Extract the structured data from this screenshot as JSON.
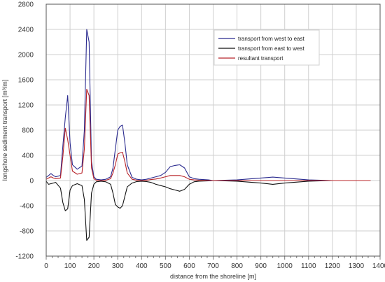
{
  "chart_data": {
    "type": "line",
    "xlabel": "distance from the shoreline [m]",
    "ylabel": "longshore sediment transport [m³/m]",
    "xlim": [
      0,
      1400
    ],
    "ylim": [
      -1200,
      2800
    ],
    "xticks": [
      0,
      100,
      200,
      300,
      400,
      500,
      600,
      700,
      800,
      900,
      1000,
      1100,
      1200,
      1300,
      1400
    ],
    "yticks": [
      -1200,
      -800,
      -400,
      0,
      400,
      800,
      1200,
      1600,
      2000,
      2400,
      2800
    ],
    "grid": true,
    "legend_position": "top-right",
    "series": [
      {
        "name": "transport from west to east",
        "color": "#2b2b8f",
        "x": [
          0,
          10,
          20,
          30,
          40,
          60,
          70,
          80,
          90,
          100,
          110,
          130,
          150,
          160,
          170,
          180,
          190,
          200,
          210,
          230,
          250,
          270,
          280,
          290,
          300,
          310,
          320,
          330,
          340,
          360,
          380,
          400,
          420,
          440,
          460,
          480,
          500,
          520,
          540,
          560,
          580,
          600,
          620,
          640,
          680,
          700,
          800,
          900,
          950,
          1000,
          1100,
          1200,
          1300,
          1360
        ],
        "y": [
          50,
          80,
          110,
          80,
          60,
          80,
          550,
          1000,
          1350,
          600,
          250,
          180,
          230,
          800,
          2400,
          2200,
          300,
          60,
          20,
          10,
          20,
          60,
          200,
          500,
          800,
          860,
          880,
          600,
          250,
          50,
          20,
          10,
          20,
          40,
          60,
          80,
          130,
          220,
          240,
          250,
          200,
          60,
          30,
          20,
          10,
          0,
          10,
          40,
          55,
          40,
          10,
          0,
          0,
          0
        ]
      },
      {
        "name": "transport from east to west",
        "color": "#111111",
        "x": [
          0,
          10,
          20,
          30,
          40,
          60,
          70,
          80,
          90,
          100,
          110,
          130,
          150,
          160,
          170,
          180,
          190,
          200,
          210,
          230,
          250,
          270,
          280,
          290,
          300,
          310,
          320,
          330,
          340,
          360,
          380,
          400,
          420,
          440,
          460,
          480,
          500,
          520,
          540,
          560,
          580,
          600,
          620,
          640,
          680,
          700,
          800,
          900,
          950,
          1000,
          1100,
          1200,
          1300,
          1360
        ],
        "y": [
          -10,
          -60,
          -50,
          -40,
          -30,
          -120,
          -350,
          -480,
          -450,
          -150,
          -80,
          -50,
          -80,
          -300,
          -950,
          -900,
          -200,
          -60,
          -20,
          -10,
          -20,
          -60,
          -200,
          -380,
          -420,
          -440,
          -400,
          -250,
          -100,
          -40,
          -15,
          -10,
          -15,
          -30,
          -60,
          -80,
          -100,
          -130,
          -150,
          -170,
          -140,
          -60,
          -20,
          -10,
          -5,
          0,
          -10,
          -40,
          -60,
          -40,
          -10,
          0,
          0,
          0
        ]
      },
      {
        "name": "resultant transport",
        "color": "#b8242a",
        "x": [
          0,
          10,
          20,
          30,
          40,
          60,
          70,
          80,
          90,
          100,
          110,
          130,
          150,
          160,
          170,
          180,
          190,
          200,
          210,
          230,
          250,
          270,
          280,
          290,
          300,
          310,
          320,
          330,
          340,
          360,
          380,
          400,
          420,
          440,
          460,
          480,
          500,
          520,
          540,
          560,
          580,
          600,
          620,
          640,
          680,
          700,
          800,
          900,
          950,
          1000,
          1100,
          1200,
          1300,
          1360
        ],
        "y": [
          20,
          40,
          60,
          40,
          30,
          40,
          380,
          830,
          650,
          400,
          150,
          100,
          120,
          500,
          1450,
          1350,
          200,
          30,
          5,
          0,
          5,
          30,
          120,
          250,
          420,
          440,
          450,
          300,
          120,
          20,
          5,
          0,
          5,
          15,
          25,
          40,
          60,
          80,
          80,
          80,
          60,
          20,
          10,
          5,
          0,
          0,
          0,
          0,
          0,
          0,
          0,
          0,
          0,
          0
        ]
      }
    ]
  }
}
